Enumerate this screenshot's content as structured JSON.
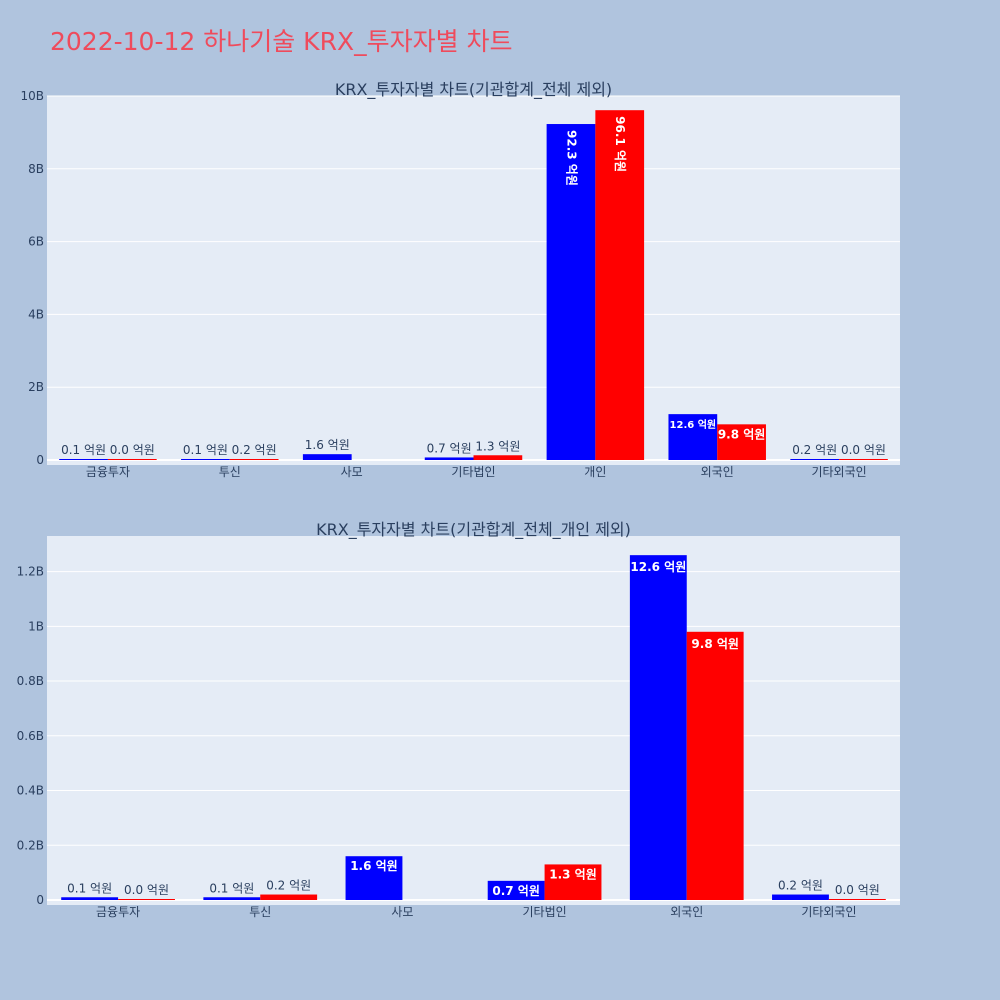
{
  "page": {
    "title": "2022-10-12 하나기술 KRX_투자자별 차트"
  },
  "colors": {
    "series1": "#0000ff",
    "series2": "#ff0000",
    "plot_bg": "#e5ecf6",
    "page_bg": "#b0c4de",
    "title": "#ef4b5c"
  },
  "chart_data": [
    {
      "type": "bar",
      "title": "KRX_투자자별 차트(기관합계_전체 제외)",
      "categories": [
        "금융투자",
        "투신",
        "사모",
        "기타법인",
        "개인",
        "외국인",
        "기타외국인"
      ],
      "series": [
        {
          "color": "#0000ff",
          "values": [
            10000000,
            10000000,
            160000000,
            70000000,
            9230000000,
            1260000000,
            20000000
          ],
          "labels": [
            "0.1 억원",
            "0.1 억원",
            "1.6 억원",
            "0.7 억원",
            "92.3 억원",
            "12.6 억원",
            "0.2 억원"
          ]
        },
        {
          "color": "#ff0000",
          "values": [
            0,
            20000000,
            null,
            130000000,
            9610000000,
            980000000,
            0
          ],
          "labels": [
            "0.0 억원",
            "0.2 억원",
            null,
            "1.3 억원",
            "96.1 억원",
            "9.8 억원",
            "0.0 억원"
          ]
        }
      ],
      "ylim": [
        0,
        10000000000
      ],
      "yticks": [
        0,
        2000000000,
        4000000000,
        6000000000,
        8000000000,
        10000000000
      ],
      "ytick_labels": [
        "0",
        "2B",
        "4B",
        "6B",
        "8B",
        "10B"
      ],
      "grid": true
    },
    {
      "type": "bar",
      "title": "KRX_투자자별 차트(기관합계_전체_개인 제외)",
      "categories": [
        "금융투자",
        "투신",
        "사모",
        "기타법인",
        "외국인",
        "기타외국인"
      ],
      "series": [
        {
          "color": "#0000ff",
          "values": [
            10000000,
            10000000,
            160000000,
            70000000,
            1260000000,
            20000000
          ],
          "labels": [
            "0.1 억원",
            "0.1 억원",
            "1.6 억원",
            "0.7 억원",
            "12.6 억원",
            "0.2 억원"
          ]
        },
        {
          "color": "#ff0000",
          "values": [
            0,
            20000000,
            null,
            130000000,
            980000000,
            0
          ],
          "labels": [
            "0.0 억원",
            "0.2 억원",
            null,
            "1.3 억원",
            "9.8 억원",
            "0.0 억원"
          ]
        }
      ],
      "ylim": [
        0,
        1330000000
      ],
      "yticks": [
        0,
        200000000,
        400000000,
        600000000,
        800000000,
        1000000000,
        1200000000
      ],
      "ytick_labels": [
        "0",
        "0.2B",
        "0.4B",
        "0.6B",
        "0.8B",
        "1B",
        "1.2B"
      ],
      "grid": true
    }
  ]
}
